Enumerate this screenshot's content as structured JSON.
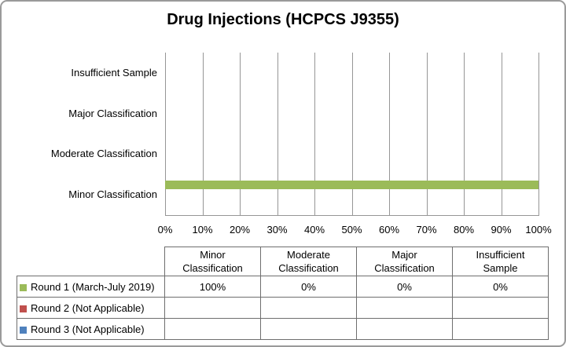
{
  "title": "Drug Injections (HCPCS J9355)",
  "colors": {
    "series_green": "#9BBB59",
    "series_red": "#C0504D",
    "series_blue": "#4F81BD",
    "gridline": "#969696",
    "table_border": "#6e6e6e",
    "text": "#000000"
  },
  "chart_data": {
    "type": "bar",
    "orientation": "horizontal",
    "title": "Drug Injections (HCPCS J9355)",
    "categories_bottom_to_top": [
      "Minor Classification",
      "Moderate Classification",
      "Major Classification",
      "Insufficient Sample"
    ],
    "x_tick_labels": [
      "0%",
      "10%",
      "20%",
      "30%",
      "40%",
      "50%",
      "60%",
      "70%",
      "80%",
      "90%",
      "100%"
    ],
    "xlim": [
      0,
      100
    ],
    "grid": "vertical gridlines every 10%",
    "legend_position": "data table below chart",
    "series": [
      {
        "name": "Round 1 (March-July 2019)",
        "color": "#9BBB59",
        "values_pct": [
          100,
          0,
          0,
          0
        ]
      },
      {
        "name": "Round 2 (Not Applicable)",
        "color": "#C0504D",
        "values_pct": [
          null,
          null,
          null,
          null
        ]
      },
      {
        "name": "Round 3 (Not Applicable)",
        "color": "#4F81BD",
        "values_pct": [
          null,
          null,
          null,
          null
        ]
      }
    ]
  },
  "data_table": {
    "column_headers": [
      [
        "Minor",
        "Classification"
      ],
      [
        "Moderate",
        "Classification"
      ],
      [
        "Major",
        "Classification"
      ],
      [
        "Insufficient",
        "Sample"
      ]
    ],
    "rows": [
      {
        "swatch_color": "#9BBB59",
        "label": "Round 1 (March-July 2019)",
        "cells": [
          "100%",
          "0%",
          "0%",
          "0%"
        ]
      },
      {
        "swatch_color": "#C0504D",
        "label": "Round 2 (Not Applicable)",
        "cells": [
          "",
          "",
          "",
          ""
        ]
      },
      {
        "swatch_color": "#4F81BD",
        "label": "Round 3 (Not Applicable)",
        "cells": [
          "",
          "",
          "",
          ""
        ]
      }
    ]
  }
}
